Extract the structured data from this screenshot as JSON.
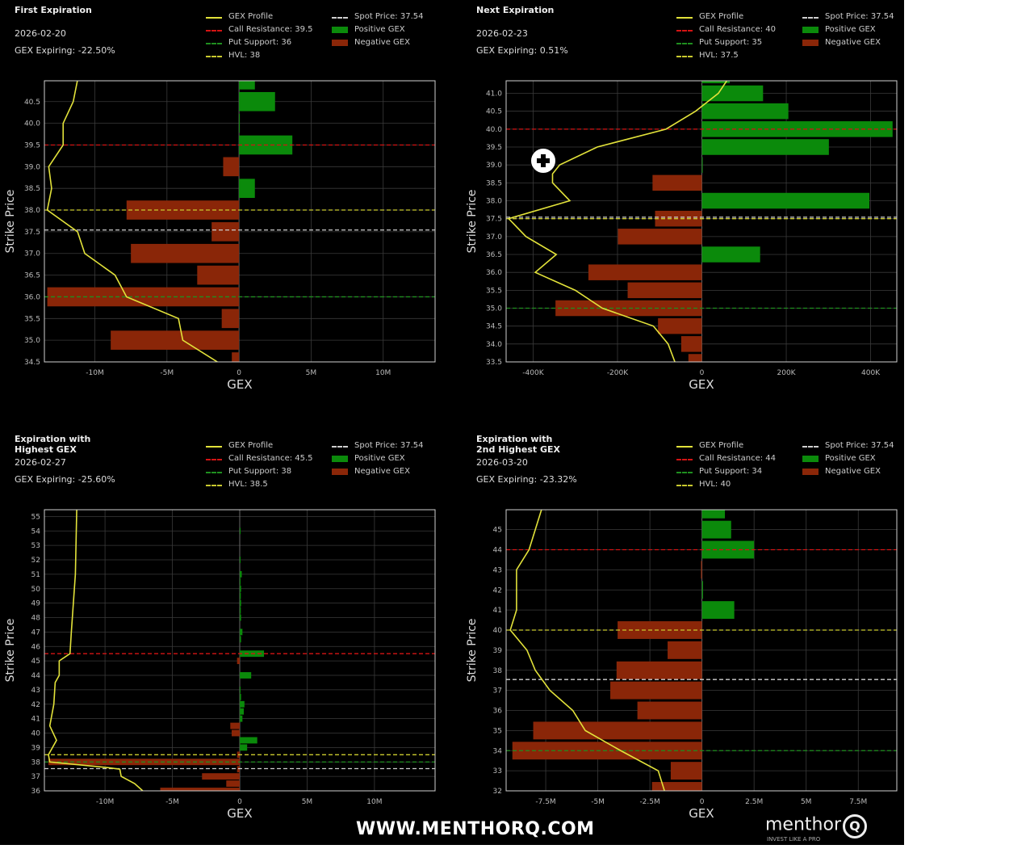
{
  "colors": {
    "positive": "#0b8a0b",
    "negative": "#8a2608",
    "profile": "#e2e23a",
    "call": "#d41414",
    "put": "#1f8f1f",
    "hvl": "#c9c92e",
    "spot": "#cfcfcf",
    "grid": "#3a3a3a",
    "frame": "#cfcfcf"
  },
  "legend_labels": {
    "profile": "GEX Profile",
    "positive": "Positive GEX",
    "negative": "Negative GEX"
  },
  "watermark": "WWW.MENTHORQ.COM",
  "logo": {
    "name": "menthor",
    "mark": "Q",
    "tagline": "INVEST LIKE A PRO"
  },
  "chart_data": [
    {
      "type": "bar",
      "title": "First Expiration",
      "date": "2026-02-20",
      "gex_expiring": "GEX Expiring: -22.50%",
      "xlabel": "GEX",
      "ylabel": "Strike Price",
      "xlim": [
        -13.5,
        13.6
      ],
      "ylim": [
        34.5,
        40.98
      ],
      "x_unit": "M",
      "xticks": [
        -10,
        -5,
        0,
        5,
        10
      ],
      "xtick_labels": [
        "-10M",
        "-5M",
        "0",
        "5M",
        "10M"
      ],
      "yticks": [
        34.5,
        35,
        35.5,
        36,
        36.5,
        37,
        37.5,
        38,
        38.5,
        39,
        39.5,
        40,
        40.5
      ],
      "ytick_labels": [
        "34.5",
        "35.0",
        "35.5",
        "36.0",
        "36.5",
        "37.0",
        "37.5",
        "38.0",
        "38.5",
        "39.0",
        "39.5",
        "40.0",
        "40.5"
      ],
      "bars": {
        "strikes": [
          34.5,
          35,
          35.5,
          36,
          36.5,
          37,
          37.5,
          38,
          38.5,
          39,
          39.5,
          40,
          40.5,
          41
        ],
        "values": [
          -0.5,
          -8.9,
          -1.2,
          -13.3,
          -2.9,
          -7.5,
          -1.9,
          -7.8,
          1.1,
          -1.1,
          3.7,
          0.05,
          2.5,
          1.1
        ]
      },
      "profile": {
        "strikes": [
          34.5,
          35,
          35.5,
          36,
          36.5,
          37,
          37.5,
          38,
          38.5,
          39,
          39.5,
          40,
          40.5,
          41
        ],
        "values": [
          -1.5,
          -3.9,
          -4.2,
          -7.8,
          -8.6,
          -10.7,
          -11.2,
          -13.3,
          -13.0,
          -13.2,
          -12.2,
          -12.2,
          -11.5,
          -11.2
        ]
      },
      "levels": {
        "call_resistance": 39.5,
        "put_support": 36,
        "hvl": 38,
        "spot": 37.54
      },
      "legend": {
        "call": "Call Resistance: 39.5",
        "put": "Put Support: 36",
        "hvl": "HVL: 38",
        "spot": "Spot Price: 37.54"
      }
    },
    {
      "type": "bar",
      "title": "Next Expiration",
      "date": "2026-02-23",
      "gex_expiring": "GEX Expiring: 0.51%",
      "xlabel": "GEX",
      "ylabel": "Strike Price",
      "xlim": [
        -464,
        462
      ],
      "ylim": [
        33.5,
        41.35
      ],
      "x_unit": "K",
      "xticks": [
        -400,
        -200,
        0,
        200,
        400
      ],
      "xtick_labels": [
        "-400K",
        "-200K",
        "0",
        "200K",
        "400K"
      ],
      "yticks": [
        33.5,
        34,
        34.5,
        35,
        35.5,
        36,
        36.5,
        37,
        37.5,
        38,
        38.5,
        39,
        39.5,
        40,
        40.5,
        41
      ],
      "ytick_labels": [
        "33.5",
        "34.0",
        "34.5",
        "35.0",
        "35.5",
        "36.0",
        "36.5",
        "37.0",
        "37.5",
        "38.0",
        "38.5",
        "39.0",
        "39.5",
        "40.0",
        "40.5",
        "41.0"
      ],
      "bars": {
        "strikes": [
          33.5,
          34,
          34.5,
          35,
          35.5,
          36,
          36.5,
          37,
          37.5,
          38,
          38.5,
          39,
          39.5,
          40,
          40.5,
          41,
          41.5
        ],
        "values": [
          -32,
          -49,
          -104,
          -347,
          -176,
          -269,
          138,
          -199,
          -111,
          397,
          -117,
          1,
          301,
          452,
          205,
          145,
          66
        ]
      },
      "profile": {
        "strikes": [
          33.5,
          34,
          34.5,
          35,
          35.5,
          36,
          36.5,
          37,
          37.5,
          38,
          38.5,
          38.75,
          39,
          39.5,
          40,
          40.5,
          41,
          41.35
        ],
        "values": [
          -64,
          -80,
          -115,
          -236,
          -300,
          -395,
          -345,
          -417,
          -458,
          -313,
          -354,
          -354,
          -337,
          -248,
          -85,
          -15,
          39,
          59
        ]
      },
      "levels": {
        "call_resistance": 40,
        "put_support": 35,
        "hvl": 37.5,
        "spot": 37.54
      },
      "legend": {
        "call": "Call Resistance: 40",
        "put": "Put Support: 35",
        "hvl": "HVL: 37.5",
        "spot": "Spot Price: 37.54"
      }
    },
    {
      "type": "bar",
      "title": "Expiration with\nHighest GEX",
      "date": "2026-02-27",
      "gex_expiring": "GEX Expiring: -25.60%",
      "xlabel": "GEX",
      "ylabel": "Strike Price",
      "xlim": [
        -14.5,
        14.5
      ],
      "ylim": [
        36,
        55.47
      ],
      "x_unit": "M",
      "xticks": [
        -10,
        -5,
        0,
        5,
        10
      ],
      "xtick_labels": [
        "-10M",
        "-5M",
        "0",
        "5M",
        "10M"
      ],
      "yticks": [
        36,
        37,
        38,
        39,
        40,
        41,
        42,
        43,
        44,
        45,
        46,
        47,
        48,
        49,
        50,
        51,
        52,
        53,
        54,
        55
      ],
      "ytick_labels": [
        "36",
        "37",
        "38",
        "39",
        "40",
        "41",
        "42",
        "43",
        "44",
        "45",
        "46",
        "47",
        "48",
        "49",
        "50",
        "51",
        "52",
        "53",
        "54",
        "55"
      ],
      "bars": {
        "strikes": [
          36,
          36.5,
          37,
          37.5,
          38,
          38.5,
          39,
          39.5,
          40,
          40.5,
          41,
          41.5,
          42,
          42.5,
          43,
          44,
          45,
          45.5,
          46.5,
          47,
          48,
          48.5,
          49,
          49.5,
          50,
          50.5,
          51,
          52,
          54
        ],
        "values": [
          -5.9,
          -1.0,
          -2.8,
          -0.2,
          -14.2,
          -0.2,
          0.55,
          1.3,
          -0.6,
          -0.7,
          0.2,
          0.3,
          0.35,
          0.1,
          0.05,
          0.85,
          -0.2,
          1.8,
          0.1,
          0.2,
          0.1,
          0.08,
          0.1,
          0.08,
          0.1,
          0.05,
          0.15,
          0.05,
          0.04
        ]
      },
      "profile": {
        "strikes": [
          36,
          36.5,
          37,
          37.5,
          37.6,
          38,
          38.5,
          39,
          39.5,
          40.5,
          42,
          43.5,
          44,
          45,
          45.5,
          47,
          51,
          55.47
        ],
        "values": [
          -7.2,
          -7.8,
          -8.8,
          -8.9,
          -9.7,
          -14.1,
          -14.2,
          -13.9,
          -13.6,
          -14.1,
          -13.8,
          -13.7,
          -13.4,
          -13.4,
          -12.6,
          -12.5,
          -12.2,
          -12.1
        ]
      },
      "levels": {
        "call_resistance": 45.5,
        "put_support": 38,
        "hvl": 38.5,
        "spot": 37.54
      },
      "legend": {
        "call": "Call Resistance: 45.5",
        "put": "Put Support: 38",
        "hvl": "HVL: 38.5",
        "spot": "Spot Price: 37.54"
      }
    },
    {
      "type": "bar",
      "title": "Expiration with\n2nd Highest GEX",
      "date": "2026-03-20",
      "gex_expiring": "GEX Expiring: -23.32%",
      "xlabel": "GEX",
      "ylabel": "Strike Price",
      "xlim": [
        -9.4,
        9.35
      ],
      "ylim": [
        32,
        45.99
      ],
      "x_unit": "M",
      "xticks": [
        -7.5,
        -5,
        -2.5,
        0,
        2.5,
        5,
        7.5
      ],
      "xtick_labels": [
        "-7.5M",
        "-5M",
        "-2.5M",
        "0",
        "2.5M",
        "5M",
        "7.5M"
      ],
      "yticks": [
        32,
        33,
        34,
        35,
        36,
        37,
        38,
        39,
        40,
        41,
        42,
        43,
        44,
        45
      ],
      "ytick_labels": [
        "32",
        "33",
        "34",
        "35",
        "36",
        "37",
        "38",
        "39",
        "40",
        "41",
        "42",
        "43",
        "44",
        "45"
      ],
      "bars": {
        "strikes": [
          32,
          33,
          34,
          35,
          36,
          37,
          38,
          39,
          40,
          41,
          42,
          43,
          44,
          45,
          46
        ],
        "values": [
          -2.4,
          -1.5,
          -9.1,
          -8.1,
          -3.1,
          -4.4,
          -4.1,
          -1.65,
          -4.05,
          1.55,
          0.05,
          -0.05,
          2.5,
          1.4,
          1.1
        ]
      },
      "profile": {
        "strikes": [
          32,
          33,
          34,
          35,
          36,
          37,
          38,
          39,
          40,
          41,
          42,
          43,
          44,
          45,
          46
        ],
        "values": [
          -1.8,
          -2.1,
          -3.9,
          -5.6,
          -6.2,
          -7.3,
          -8.0,
          -8.4,
          -9.2,
          -8.9,
          -8.9,
          -8.9,
          -8.3,
          -8.0,
          -7.7
        ]
      },
      "levels": {
        "call_resistance": 44,
        "put_support": 34,
        "hvl": 40,
        "spot": 37.54
      },
      "legend": {
        "call": "Call Resistance: 44",
        "put": "Put Support: 34",
        "hvl": "HVL: 40",
        "spot": "Spot Price: 37.54"
      }
    }
  ]
}
